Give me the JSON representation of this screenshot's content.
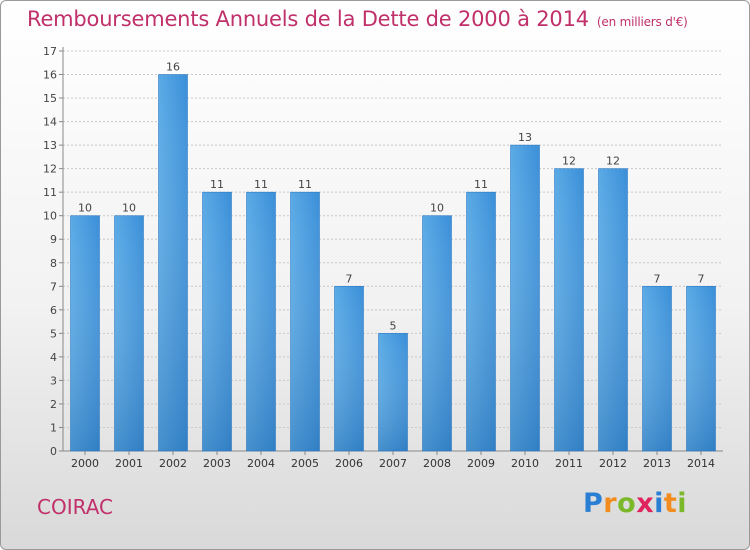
{
  "title": "Remboursements Annuels de la Dette de 2000 à 2014",
  "unit_note": "(en milliers d'€)",
  "place": "COIRAC",
  "brand": {
    "letters": [
      "P",
      "r",
      "o",
      "x",
      "i",
      "t",
      "i"
    ],
    "colors": [
      "#2a7fd4",
      "#f28c1e",
      "#7cb92a",
      "#e0245e",
      "#2a7fd4",
      "#f28c1e",
      "#7cb92a"
    ]
  },
  "colors": {
    "bar": "#3f96de",
    "bar_light": "#62b0ea",
    "title": "#c0306a"
  },
  "chart_data": {
    "type": "bar",
    "title": "Remboursements Annuels de la Dette de 2000 à 2014",
    "xlabel": "",
    "ylabel": "",
    "ylim": [
      0,
      17
    ],
    "yticks": [
      0,
      1,
      2,
      3,
      4,
      5,
      6,
      7,
      8,
      9,
      10,
      11,
      12,
      13,
      14,
      15,
      16,
      17
    ],
    "grid": true,
    "categories": [
      "2000",
      "2001",
      "2002",
      "2003",
      "2004",
      "2005",
      "2006",
      "2007",
      "2008",
      "2009",
      "2010",
      "2011",
      "2012",
      "2013",
      "2014"
    ],
    "values": [
      10,
      10,
      16,
      11,
      11,
      11,
      7,
      5,
      10,
      11,
      13,
      12,
      12,
      7,
      7
    ],
    "data_labels": [
      "10",
      "10",
      "16",
      "11",
      "11",
      "11",
      "7",
      "5",
      "10",
      "11",
      "13",
      "12",
      "12",
      "7",
      "7"
    ]
  }
}
